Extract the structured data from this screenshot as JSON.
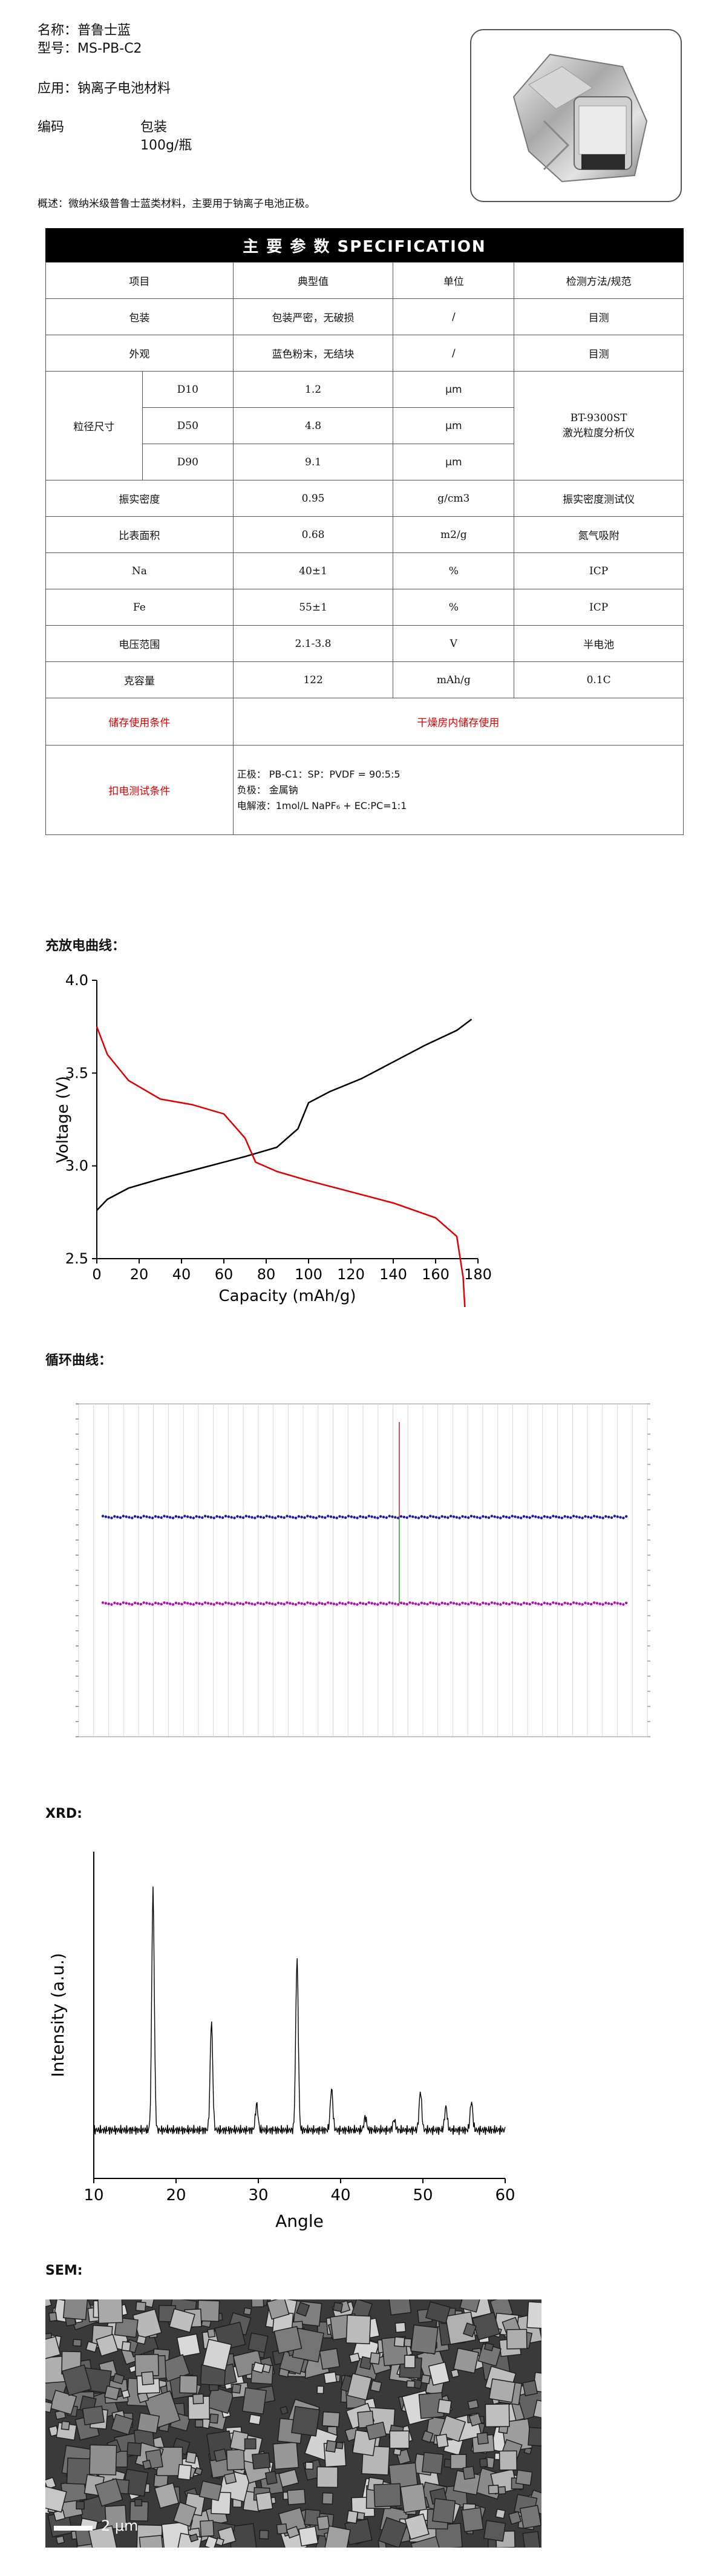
{
  "header": {
    "name_label": "名称：",
    "name_value": "普鲁士蓝",
    "model_label": "型号：",
    "model_value": "MS-PB-C2",
    "application_label": "应用：",
    "application_value": "钠离子电池材料",
    "code_label": "编码",
    "package_label": "包装",
    "package_value": "100g/瓶"
  },
  "summary": {
    "label": "概述：",
    "text": "微纳米级普鲁士蓝类材料，主要用于钠离子电池正极。"
  },
  "spec": {
    "title": "主 要 参 数 SPECIFICATION",
    "columns": [
      "项目",
      "典型值",
      "单位",
      "检测方法/规范"
    ],
    "pack_row": [
      "包装",
      "包装严密，无破损",
      "/",
      "目测"
    ],
    "look_row": [
      "外观",
      "蓝色粉末，无结块",
      "/",
      "目测"
    ],
    "particle": {
      "label": "粒径尺寸",
      "rows": [
        {
          "name": "D10",
          "value": "1.2",
          "unit": "μm"
        },
        {
          "name": "D50",
          "value": "4.8",
          "unit": "μm"
        },
        {
          "name": "D90",
          "value": "9.1",
          "unit": "μm"
        }
      ],
      "method_line1": "BT-9300ST",
      "method_line2": "激光粒度分析仪"
    },
    "rows": [
      {
        "item": "振实密度",
        "value": "0.95",
        "unit": "g/cm3",
        "method": "振实密度测试仪"
      },
      {
        "item": "比表面积",
        "value": "0.68",
        "unit": "m2/g",
        "method": "氮气吸附"
      },
      {
        "item": "Na",
        "value": "40±1",
        "unit": "%",
        "method": "ICP"
      },
      {
        "item": "Fe",
        "value": "55±1",
        "unit": "%",
        "method": "ICP"
      },
      {
        "item": "电压范围",
        "value": "2.1-3.8",
        "unit": "V",
        "method": "半电池"
      },
      {
        "item": "克容量",
        "value": "122",
        "unit": "mAh/g",
        "method": "0.1C"
      }
    ],
    "storage_label": "储存使用条件",
    "storage_value": "干燥房内储存使用",
    "test_label": "扣电测试条件",
    "test_line1": "正极： PB-C1：SP：PVDF = 90:5:5",
    "test_line2": "负极：  金属钠",
    "test_line3": "电解液：1mol/L NaPF₆ + EC:PC=1:1"
  },
  "charge_section": {
    "label": "充放电曲线："
  },
  "cycle_section": {
    "label": "循环曲线："
  },
  "xrd_section": {
    "label": "XRD:"
  },
  "sem_section": {
    "label": "SEM:",
    "scale": "2 μm"
  },
  "charts": [
    {
      "type": "line",
      "xlabel": "Capacity (mAh/g)",
      "ylabel": "Voltage (V)",
      "xlim": [
        0,
        180
      ],
      "ylim": [
        2.5,
        4.0
      ],
      "x_ticks": [
        0,
        20,
        40,
        60,
        80,
        100,
        120,
        140,
        160,
        180
      ],
      "y_ticks": [
        "2.5",
        "3.0",
        "3.5",
        "4.0"
      ],
      "series": [
        {
          "color": "#000000",
          "x": [
            0,
            5,
            15,
            30,
            50,
            70,
            85,
            95,
            100,
            110,
            125,
            140,
            155,
            170,
            177
          ],
          "y": [
            2.76,
            2.82,
            2.88,
            2.93,
            2.99,
            3.05,
            3.1,
            3.2,
            3.34,
            3.4,
            3.47,
            3.56,
            3.65,
            3.73,
            3.79
          ]
        },
        {
          "color": "#e00000",
          "x": [
            0,
            5,
            15,
            30,
            45,
            60,
            70,
            75,
            85,
            100,
            120,
            140,
            160,
            170,
            173,
            174
          ],
          "y": [
            3.75,
            3.6,
            3.46,
            3.36,
            3.33,
            3.28,
            3.15,
            3.02,
            2.97,
            2.92,
            2.86,
            2.8,
            2.72,
            2.62,
            2.4,
            2.2
          ]
        }
      ]
    },
    {
      "type": "scatter",
      "series": [
        {
          "color": "#1a1aa8",
          "level": 0.66
        },
        {
          "color": "#b010b0",
          "level": 0.4
        }
      ]
    },
    {
      "type": "line",
      "xlabel": "Angle",
      "ylabel": "Intensity (a.u.)",
      "xlim": [
        10,
        60
      ],
      "x_ticks": [
        10,
        20,
        30,
        40,
        50,
        60
      ],
      "peaks": [
        {
          "x": 17.2,
          "h": 0.92
        },
        {
          "x": 24.3,
          "h": 0.42
        },
        {
          "x": 29.8,
          "h": 0.1
        },
        {
          "x": 34.7,
          "h": 0.66
        },
        {
          "x": 38.9,
          "h": 0.16
        },
        {
          "x": 43.0,
          "h": 0.05
        },
        {
          "x": 46.5,
          "h": 0.04
        },
        {
          "x": 49.7,
          "h": 0.15
        },
        {
          "x": 52.8,
          "h": 0.09
        },
        {
          "x": 55.9,
          "h": 0.11
        }
      ]
    }
  ]
}
